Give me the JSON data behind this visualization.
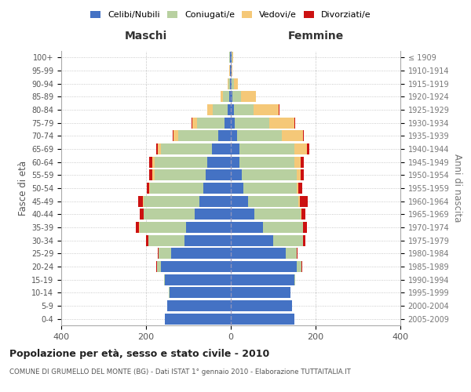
{
  "age_groups": [
    "0-4",
    "5-9",
    "10-14",
    "15-19",
    "20-24",
    "25-29",
    "30-34",
    "35-39",
    "40-44",
    "45-49",
    "50-54",
    "55-59",
    "60-64",
    "65-69",
    "70-74",
    "75-79",
    "80-84",
    "85-89",
    "90-94",
    "95-99",
    "100+"
  ],
  "birth_years": [
    "2005-2009",
    "2000-2004",
    "1995-1999",
    "1990-1994",
    "1985-1989",
    "1980-1984",
    "1975-1979",
    "1970-1974",
    "1965-1969",
    "1960-1964",
    "1955-1959",
    "1950-1954",
    "1945-1949",
    "1940-1944",
    "1935-1939",
    "1930-1934",
    "1925-1929",
    "1920-1924",
    "1915-1919",
    "1910-1914",
    "≤ 1909"
  ],
  "colors": {
    "celibi": "#4472c4",
    "coniugati": "#b8d0a0",
    "vedovi": "#f5c878",
    "divorziati": "#cc1111"
  },
  "maschi": {
    "celibi": [
      155,
      150,
      145,
      155,
      165,
      140,
      110,
      105,
      85,
      75,
      65,
      60,
      55,
      45,
      30,
      15,
      8,
      4,
      2,
      1,
      2
    ],
    "coniugati": [
      0,
      0,
      1,
      3,
      10,
      30,
      85,
      110,
      120,
      130,
      125,
      120,
      125,
      120,
      95,
      65,
      35,
      15,
      3,
      1,
      1
    ],
    "vedovi": [
      0,
      0,
      0,
      0,
      0,
      0,
      0,
      1,
      1,
      2,
      3,
      5,
      5,
      8,
      10,
      10,
      12,
      5,
      2,
      1,
      1
    ],
    "divorziati": [
      0,
      0,
      0,
      0,
      1,
      2,
      5,
      8,
      8,
      12,
      5,
      8,
      8,
      3,
      2,
      2,
      0,
      0,
      0,
      0,
      0
    ]
  },
  "femmine": {
    "celibi": [
      150,
      145,
      140,
      150,
      155,
      130,
      100,
      75,
      55,
      40,
      30,
      25,
      20,
      20,
      15,
      10,
      8,
      4,
      2,
      1,
      2
    ],
    "coniugati": [
      0,
      0,
      1,
      2,
      12,
      25,
      70,
      95,
      110,
      120,
      125,
      130,
      130,
      130,
      105,
      80,
      45,
      20,
      5,
      1,
      1
    ],
    "vedovi": [
      0,
      0,
      0,
      0,
      0,
      0,
      0,
      1,
      2,
      3,
      5,
      10,
      15,
      30,
      50,
      60,
      60,
      35,
      10,
      2,
      2
    ],
    "divorziati": [
      0,
      0,
      0,
      0,
      1,
      2,
      5,
      8,
      8,
      18,
      8,
      8,
      8,
      5,
      3,
      2,
      2,
      0,
      0,
      0,
      0
    ]
  },
  "xlim": 400,
  "title": "Popolazione per età, sesso e stato civile - 2010",
  "subtitle": "COMUNE DI GRUMELLO DEL MONTE (BG) - Dati ISTAT 1° gennaio 2010 - Elaborazione TUTTAITALIA.IT",
  "ylabel_left": "Fasce di età",
  "ylabel_right": "Anni di nascita",
  "xlabel_left": "Maschi",
  "xlabel_right": "Femmine",
  "legend_labels": [
    "Celibi/Nubili",
    "Coniugati/e",
    "Vedovi/e",
    "Divorziati/e"
  ]
}
